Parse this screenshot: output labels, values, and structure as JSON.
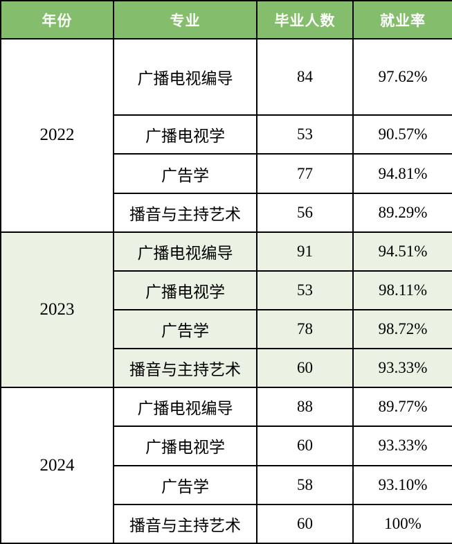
{
  "table": {
    "headers": [
      "年份",
      "专业",
      "毕业人数",
      "就业率"
    ],
    "groups": [
      {
        "year": "2022",
        "highlight": false,
        "rows": [
          [
            "广播电视编导",
            "84",
            "97.62%"
          ],
          [
            "广播电视学",
            "53",
            "90.57%"
          ],
          [
            "广告学",
            "77",
            "94.81%"
          ],
          [
            "播音与主持艺术",
            "56",
            "89.29%"
          ]
        ]
      },
      {
        "year": "2023",
        "highlight": true,
        "rows": [
          [
            "广播电视编导",
            "91",
            "94.51%"
          ],
          [
            "广播电视学",
            "53",
            "98.11%"
          ],
          [
            "广告学",
            "78",
            "98.72%"
          ],
          [
            "播音与主持艺术",
            "60",
            "93.33%"
          ]
        ]
      },
      {
        "year": "2024",
        "highlight": false,
        "rows": [
          [
            "广播电视编导",
            "88",
            "89.77%"
          ],
          [
            "广播电视学",
            "60",
            "93.33%"
          ],
          [
            "广告学",
            "58",
            "93.10%"
          ],
          [
            "播音与主持艺术",
            "60",
            "100%"
          ]
        ]
      }
    ]
  },
  "colors": {
    "header_bg": "#84bd6b",
    "header_text": "#ffffff",
    "highlight_bg": "#e9f2e3",
    "row_bg": "#ffffff",
    "border": "#000000",
    "body_text": "#000000"
  },
  "chart_data": {
    "type": "table",
    "title": "",
    "columns": [
      "年份",
      "专业",
      "毕业人数",
      "就业率"
    ],
    "rows": [
      [
        "2022",
        "广播电视编导",
        84,
        "97.62%"
      ],
      [
        "2022",
        "广播电视学",
        53,
        "90.57%"
      ],
      [
        "2022",
        "广告学",
        77,
        "94.81%"
      ],
      [
        "2022",
        "播音与主持艺术",
        56,
        "89.29%"
      ],
      [
        "2023",
        "广播电视编导",
        91,
        "94.51%"
      ],
      [
        "2023",
        "广播电视学",
        53,
        "98.11%"
      ],
      [
        "2023",
        "广告学",
        78,
        "98.72%"
      ],
      [
        "2023",
        "播音与主持艺术",
        60,
        "93.33%"
      ],
      [
        "2024",
        "广播电视编导",
        88,
        "89.77%"
      ],
      [
        "2024",
        "广播电视学",
        60,
        "93.33%"
      ],
      [
        "2024",
        "广告学",
        58,
        "93.10%"
      ],
      [
        "2024",
        "播音与主持艺术",
        60,
        "100%"
      ]
    ]
  }
}
